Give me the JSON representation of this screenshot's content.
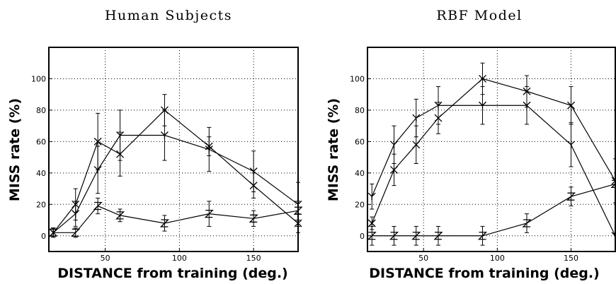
{
  "chart_data": [
    {
      "type": "line",
      "title": "Human Subjects",
      "xlabel": "DISTANCE from training (deg.)",
      "ylabel": "MISS rate (%)",
      "xlim": [
        12,
        180
      ],
      "ylim": [
        -10,
        120
      ],
      "xticks": [
        50,
        100,
        150
      ],
      "yticks": [
        0,
        20,
        40,
        60,
        80,
        100
      ],
      "grid": true,
      "series": [
        {
          "marker": "X",
          "points": [
            {
              "x": 15,
              "y": 2,
              "err": 3
            },
            {
              "x": 30,
              "y": 20,
              "err": 10
            },
            {
              "x": 45,
              "y": 60,
              "err": 18
            },
            {
              "x": 60,
              "y": 52,
              "err": 14
            },
            {
              "x": 90,
              "y": 80,
              "err": 10
            },
            {
              "x": 120,
              "y": 57,
              "err": 6
            },
            {
              "x": 150,
              "y": 32,
              "err": 8
            },
            {
              "x": 180,
              "y": 8,
              "err": 6
            }
          ]
        },
        {
          "marker": "Y",
          "points": [
            {
              "x": 15,
              "y": 2,
              "err": 3
            },
            {
              "x": 30,
              "y": 14,
              "err": 8
            },
            {
              "x": 45,
              "y": 42,
              "err": 15
            },
            {
              "x": 60,
              "y": 64,
              "err": 16
            },
            {
              "x": 90,
              "y": 64,
              "err": 16
            },
            {
              "x": 120,
              "y": 55,
              "err": 14
            },
            {
              "x": 150,
              "y": 41,
              "err": 13
            },
            {
              "x": 180,
              "y": 20,
              "err": 14
            }
          ]
        },
        {
          "marker": "Z",
          "points": [
            {
              "x": 15,
              "y": 2,
              "err": 3
            },
            {
              "x": 30,
              "y": 2,
              "err": 3
            },
            {
              "x": 45,
              "y": 19,
              "err": 5
            },
            {
              "x": 60,
              "y": 13,
              "err": 4
            },
            {
              "x": 90,
              "y": 8,
              "err": 5
            },
            {
              "x": 120,
              "y": 14,
              "err": 8
            },
            {
              "x": 150,
              "y": 11,
              "err": 5
            },
            {
              "x": 180,
              "y": 16,
              "err": 6
            }
          ]
        }
      ]
    },
    {
      "type": "line",
      "title": "RBF Model",
      "xlabel": "DISTANCE from training (deg.)",
      "ylabel": "MISS rate (%)",
      "xlim": [
        12,
        180
      ],
      "ylim": [
        -10,
        120
      ],
      "xticks": [
        50,
        100,
        150
      ],
      "yticks": [
        0,
        20,
        40,
        60,
        80,
        100
      ],
      "grid": true,
      "series": [
        {
          "marker": "X",
          "points": [
            {
              "x": 15,
              "y": 8,
              "err": 4
            },
            {
              "x": 30,
              "y": 42,
              "err": 10
            },
            {
              "x": 45,
              "y": 58,
              "err": 12
            },
            {
              "x": 60,
              "y": 75,
              "err": 10
            },
            {
              "x": 90,
              "y": 100,
              "err": 10
            },
            {
              "x": 120,
              "y": 92,
              "err": 10
            },
            {
              "x": 150,
              "y": 83,
              "err": 12
            },
            {
              "x": 180,
              "y": 35,
              "err": 14
            }
          ]
        },
        {
          "marker": "Y",
          "points": [
            {
              "x": 15,
              "y": 25,
              "err": 8
            },
            {
              "x": 30,
              "y": 58,
              "err": 12
            },
            {
              "x": 45,
              "y": 75,
              "err": 12
            },
            {
              "x": 60,
              "y": 83,
              "err": 12
            },
            {
              "x": 90,
              "y": 83,
              "err": 12
            },
            {
              "x": 120,
              "y": 83,
              "err": 12
            },
            {
              "x": 150,
              "y": 58,
              "err": 14
            },
            {
              "x": 180,
              "y": 0,
              "err": 0
            }
          ]
        },
        {
          "marker": "Z",
          "points": [
            {
              "x": 15,
              "y": 0,
              "err": 6
            },
            {
              "x": 30,
              "y": 0,
              "err": 6
            },
            {
              "x": 45,
              "y": 0,
              "err": 6
            },
            {
              "x": 60,
              "y": 0,
              "err": 6
            },
            {
              "x": 90,
              "y": 0,
              "err": 6
            },
            {
              "x": 120,
              "y": 8,
              "err": 6
            },
            {
              "x": 150,
              "y": 25,
              "err": 6
            },
            {
              "x": 180,
              "y": 33,
              "err": 0
            }
          ]
        }
      ]
    }
  ]
}
